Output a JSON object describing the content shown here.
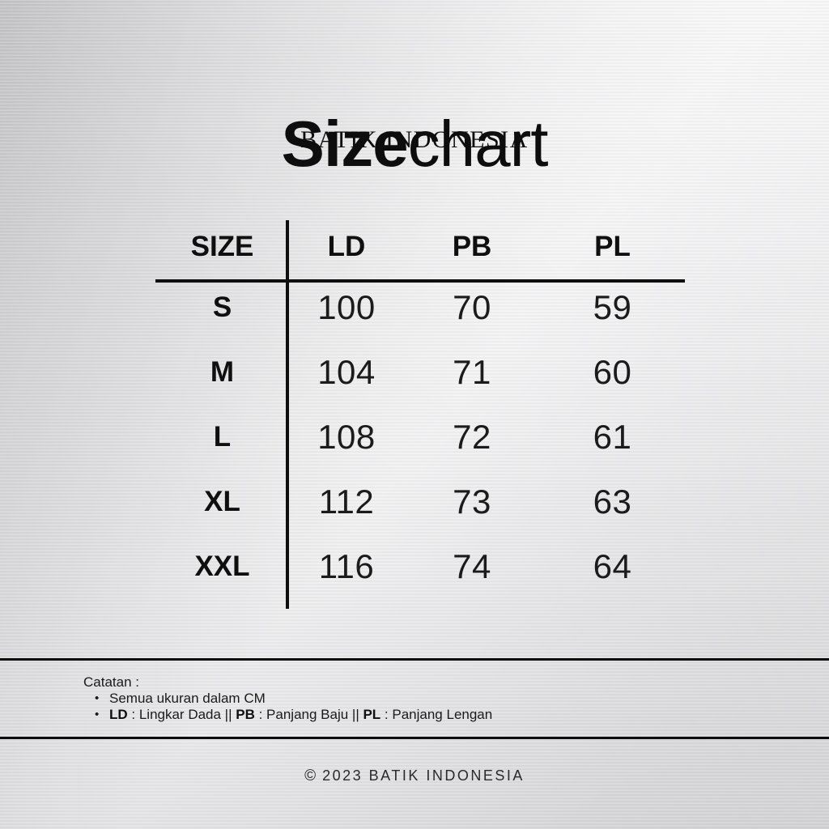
{
  "title": {
    "bold": "Size",
    "light": "chart",
    "subtitle": "BATIK INDONESIA"
  },
  "table": {
    "columns": [
      "SIZE",
      "LD",
      "PB",
      "PL"
    ],
    "rows": [
      {
        "size": "S",
        "ld": "100",
        "pb": "70",
        "pl": "59"
      },
      {
        "size": "M",
        "ld": "104",
        "pb": "71",
        "pl": "60"
      },
      {
        "size": "L",
        "ld": "108",
        "pb": "72",
        "pl": "61"
      },
      {
        "size": "XL",
        "ld": "112",
        "pb": "73",
        "pl": "63"
      },
      {
        "size": "XXL",
        "ld": "116",
        "pb": "74",
        "pl": "64"
      }
    ]
  },
  "notes": {
    "heading": "Catatan :",
    "bullet_glyph": "•",
    "bullet1": "Semua ukuran dalam CM",
    "bullet2": {
      "ld_abbr": "LD",
      "ld_rest": " : Lingkar Dada || ",
      "pb_abbr": "PB",
      "pb_rest": " : Panjang Baju || ",
      "pl_abbr": "PL",
      "pl_rest": " : Panjang Lengan"
    }
  },
  "footer": {
    "copyright": "©",
    "text": "2023 BATIK INDONESIA"
  },
  "colors": {
    "ink": "#111111",
    "line": "#0e0e0e",
    "background_light": "#f6f6f7",
    "background_dark": "#c3c3c5"
  },
  "chart_data": {
    "type": "table",
    "title": "Sizechart",
    "subtitle": "BATIK INDONESIA",
    "columns": [
      "SIZE",
      "LD",
      "PB",
      "PL"
    ],
    "rows": [
      [
        "S",
        100,
        70,
        59
      ],
      [
        "M",
        104,
        71,
        60
      ],
      [
        "L",
        108,
        72,
        61
      ],
      [
        "XL",
        112,
        73,
        63
      ],
      [
        "XXL",
        116,
        74,
        64
      ]
    ],
    "units": "CM",
    "legend": {
      "LD": "Lingkar Dada",
      "PB": "Panjang Baju",
      "PL": "Panjang Lengan"
    },
    "footer": "© 2023 BATIK INDONESIA"
  }
}
